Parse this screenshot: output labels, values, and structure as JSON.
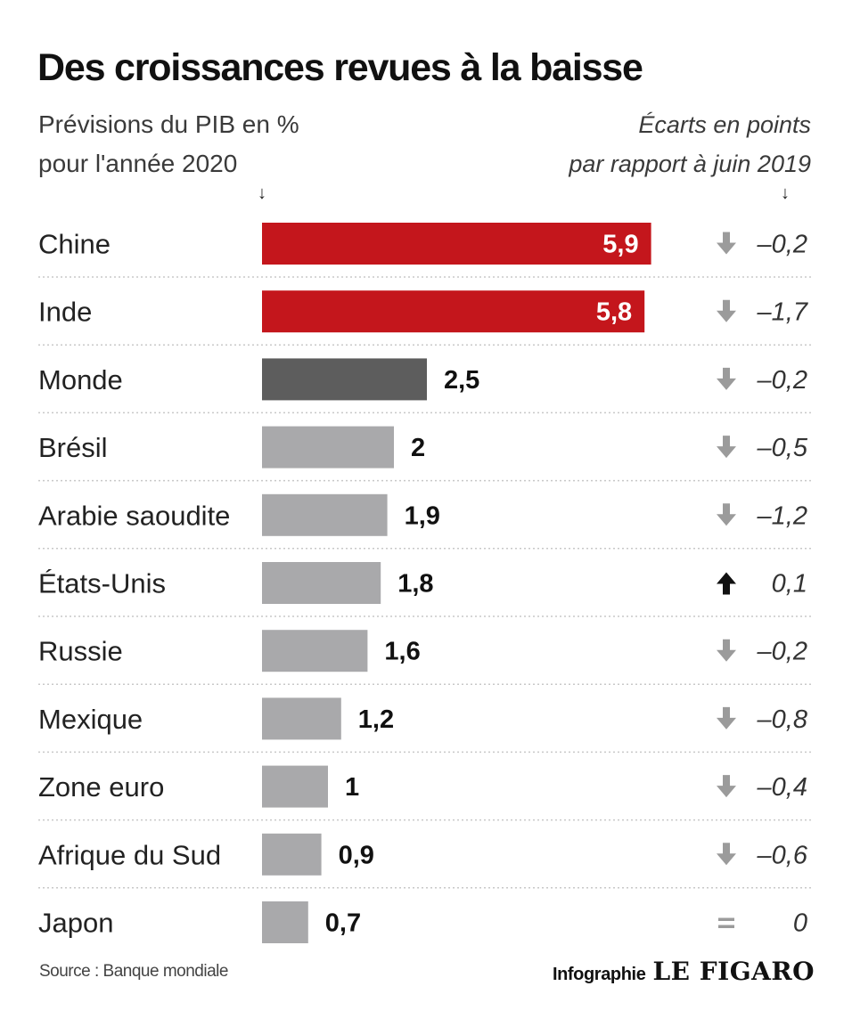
{
  "header": {
    "title": "Des croissances revues à la baisse",
    "subtitle_left_1": "Prévisions du PIB en %",
    "subtitle_left_2": "pour l'année 2020",
    "subtitle_right_1": "Écarts en points",
    "subtitle_right_2": "par rapport à  juin 2019"
  },
  "colors": {
    "highlight": "#c4161c",
    "world": "#5d5d5d",
    "others": "#a9a9ab",
    "arrow_down": "#9b9b9b",
    "arrow_up": "#111111",
    "separator": "#c8c8c8"
  },
  "chart_data": {
    "type": "bar",
    "orientation": "horizontal",
    "categories": [
      "Chine",
      "Inde",
      "Monde",
      "Brésil",
      "Arabie saoudite",
      "États-Unis",
      "Russie",
      "Mexique",
      "Zone euro",
      "Afrique du Sud",
      "Japon"
    ],
    "values": [
      5.9,
      5.8,
      2.5,
      2,
      1.9,
      1.8,
      1.6,
      1.2,
      1,
      0.9,
      0.7
    ],
    "value_labels": [
      "5,9",
      "5,8",
      "2,5",
      "2",
      "1,9",
      "1,8",
      "1,6",
      "1,2",
      "1",
      "0,9",
      "0,7"
    ],
    "changes": [
      -0.2,
      -1.7,
      -0.2,
      -0.5,
      -1.2,
      0.1,
      -0.2,
      -0.8,
      -0.4,
      -0.6,
      0
    ],
    "change_labels": [
      "–0,2",
      "–1,7",
      "–0,2",
      "–0,5",
      "–1,2",
      "0,1",
      "–0,2",
      "–0,8",
      "–0,4",
      "–0,6",
      "0"
    ],
    "change_icons": [
      "arrow-down-icon",
      "arrow-down-icon",
      "arrow-down-icon",
      "arrow-down-icon",
      "arrow-down-icon",
      "arrow-up-icon",
      "arrow-down-icon",
      "arrow-down-icon",
      "arrow-down-icon",
      "arrow-down-icon",
      "equals-icon"
    ],
    "bar_colors": [
      "highlight",
      "highlight",
      "world",
      "others",
      "others",
      "others",
      "others",
      "others",
      "others",
      "others",
      "others"
    ]
  },
  "footer": {
    "source": "Source : Banque mondiale",
    "credit_label": "Infographie",
    "credit_brand": "LE FIGARO"
  }
}
